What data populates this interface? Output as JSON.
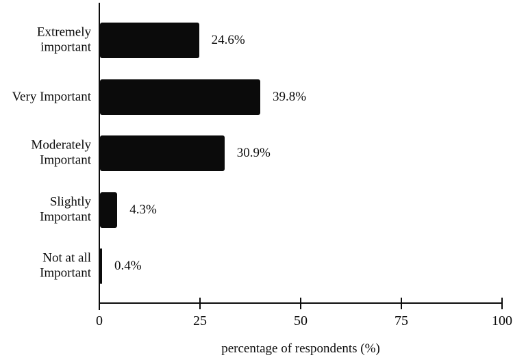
{
  "chart_data": {
    "type": "bar",
    "orientation": "horizontal",
    "title": "",
    "xlabel": "percentage of respondents (%)",
    "ylabel": "",
    "xlim": [
      0,
      100
    ],
    "x_ticks": [
      "0",
      "25",
      "50",
      "75",
      "100"
    ],
    "x_tick_values": [
      0,
      25,
      50,
      75,
      100
    ],
    "grid": false,
    "legend": false,
    "bar_color": "#0b0b0b",
    "categories": [
      "Extremely\nimportant",
      "Very Important",
      "Moderately\nImportant",
      "Slightly\nImportant",
      "Not at all\nImportant"
    ],
    "values": [
      24.6,
      39.8,
      30.9,
      4.3,
      0.4
    ],
    "value_labels": [
      "24.6%",
      "39.8%",
      "30.9%",
      "4.3%",
      "0.4%"
    ]
  }
}
